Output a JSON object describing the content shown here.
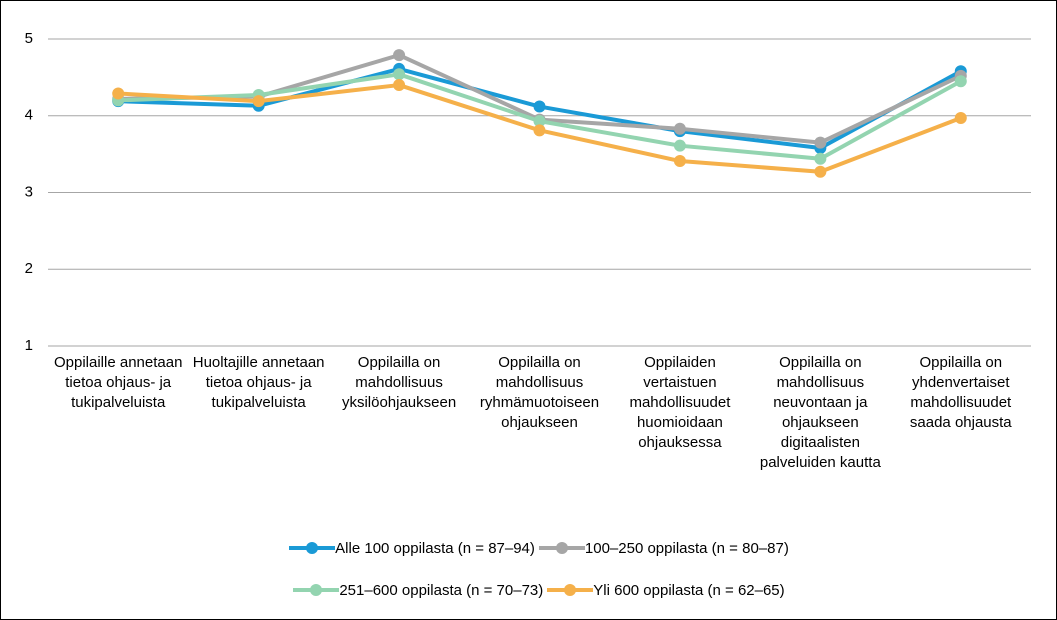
{
  "chart_data": {
    "type": "line",
    "categories": [
      "Oppilaille annetaan tietoa ohjaus- ja tukipalveluista",
      "Huoltajille annetaan tietoa ohjaus- ja tukipalveluista",
      "Oppilailla on mahdollisuus yksilöohjaukseen",
      "Oppilailla on mahdollisuus ryhmämuotoiseen ohjaukseen",
      "Oppilaiden vertaistuen mahdollisuudet huomioidaan ohjauksessa",
      "Oppilailla on mahdollisuus neuvontaan ja ohjaukseen digitaalisten palveluiden kautta",
      "Oppilailla on yhdenvertaiset mahdollisuudet saada ohjausta"
    ],
    "series": [
      {
        "name": "Alle 100 oppilasta (n = 87–94)",
        "color": "#1a9ad6",
        "values": [
          4.19,
          4.13,
          4.61,
          4.12,
          3.8,
          3.58,
          4.58
        ]
      },
      {
        "name": "100–250 oppilasta (n = 80–87)",
        "color": "#a6a6a6",
        "values": [
          4.22,
          4.25,
          4.79,
          3.95,
          3.83,
          3.65,
          4.52
        ]
      },
      {
        "name": "251–600 oppilasta (n = 70–73)",
        "color": "#93d4b0",
        "values": [
          4.2,
          4.27,
          4.54,
          3.93,
          3.61,
          3.44,
          4.45
        ]
      },
      {
        "name": "Yli 600 oppilasta (n = 62–65)",
        "color": "#f5b04a",
        "values": [
          4.29,
          4.19,
          4.4,
          3.81,
          3.41,
          3.27,
          3.97
        ]
      }
    ],
    "ylim": [
      1,
      5
    ],
    "yticks": [
      1,
      2,
      3,
      4,
      5
    ],
    "grid": true
  }
}
